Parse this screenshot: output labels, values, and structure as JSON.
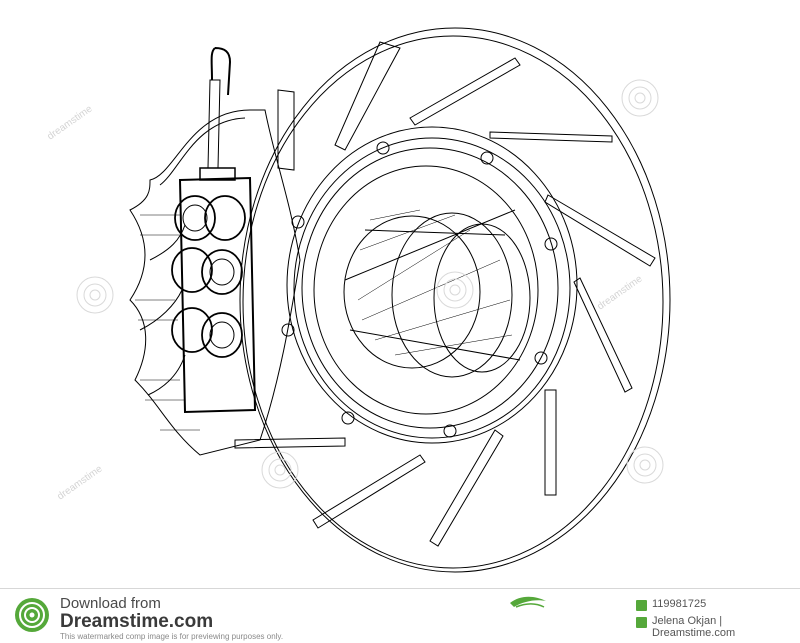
{
  "image": {
    "subject": "brake-disc-and-caliper-wireframe",
    "style": "black line wireframe on white background"
  },
  "watermark": {
    "text": "dreamstime",
    "color": "#d4d4d4"
  },
  "footer": {
    "download_label": "Download from",
    "brand": "Dreamstime.com",
    "disclaimer": "This watermarked comp image is for previewing purposes only.",
    "image_id": "119981725",
    "author": "Jelena Okjan | Dreamstime.com",
    "accent_color": "#55a83a"
  }
}
